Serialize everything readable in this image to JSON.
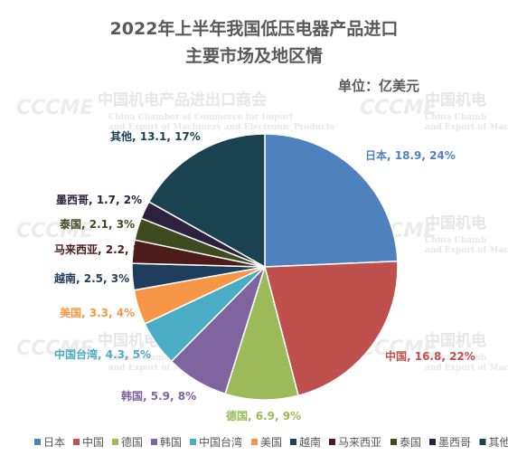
{
  "chart_data": {
    "type": "pie",
    "title": [
      "2022年上半年我国低压电器产品进口",
      "主要市场及地区情"
    ],
    "unit_label": "单位：亿美元",
    "slices": [
      {
        "name": "日本",
        "value": 18.9,
        "percent": "24%",
        "color": "#4F81BD",
        "label": "日本, 18.9, 24%"
      },
      {
        "name": "中国",
        "value": 16.8,
        "percent": "22%",
        "color": "#C0504D",
        "label": "中国, 16.8, 22%"
      },
      {
        "name": "德国",
        "value": 6.9,
        "percent": "9%",
        "color": "#9BBB59",
        "label": "德国, 6.9, 9%"
      },
      {
        "name": "韩国",
        "value": 5.9,
        "percent": "8%",
        "color": "#8064A2",
        "label": "韩国, 5.9, 8%"
      },
      {
        "name": "中国台湾",
        "value": 4.3,
        "percent": "5%",
        "color": "#4BACC6",
        "label": "中国台湾, 4.3, 5%"
      },
      {
        "name": "美国",
        "value": 3.3,
        "percent": "4%",
        "color": "#F79646",
        "label": "美国, 3.3, 4%"
      },
      {
        "name": "越南",
        "value": 2.5,
        "percent": "3%",
        "color": "#1F3D5C",
        "label": "越南, 2.5, 3%"
      },
      {
        "name": "马来西亚",
        "value": 2.2,
        "percent": "3%",
        "color": "#4D1C1A",
        "label": "马来西亚, 2.2, 3%"
      },
      {
        "name": "泰国",
        "value": 2.1,
        "percent": "3%",
        "color": "#3E4A1F",
        "label": "泰国, 2.1, 3%"
      },
      {
        "name": "墨西哥",
        "value": 1.7,
        "percent": "2%",
        "color": "#2C2240",
        "label": "墨西哥, 1.7, 2%"
      },
      {
        "name": "其他",
        "value": 13.1,
        "percent": "17%",
        "color": "#1B4251",
        "label": "其他, 13.1, 17%"
      }
    ],
    "legend_position": "bottom"
  },
  "watermark": {
    "logo": "CCCME",
    "name_cn": "中国机电产品进出口商会",
    "name_en_1": "China Chamber of Commerce for Import",
    "name_en_2": "and Export of Machinery and Electronic Products",
    "name_cn_short": "中国机电",
    "name_en_short_1": "China Chamb",
    "name_en_short_2": "and Export of Mach"
  }
}
